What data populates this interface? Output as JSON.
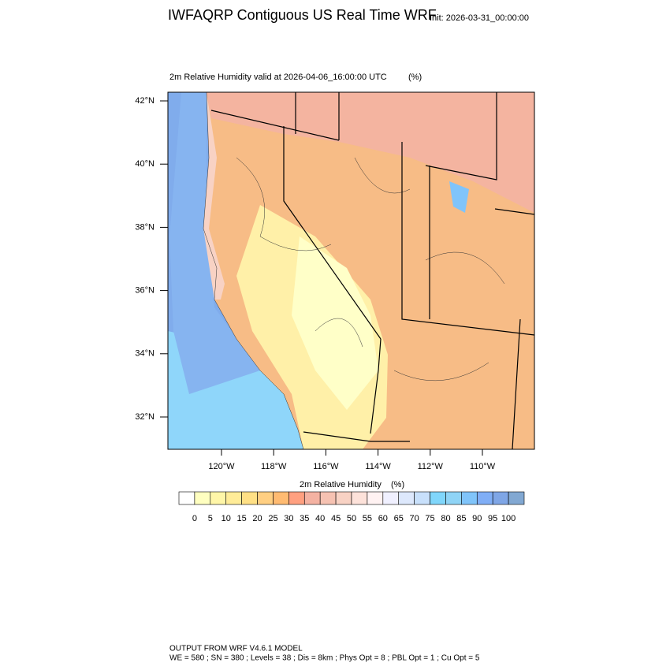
{
  "header": {
    "title": "IWFAQRP Contiguous US Real Time WRF",
    "init": "Init: 2026-03-31_00:00:00"
  },
  "map": {
    "subtitle": "2m Relative Humidity valid at 2026-04-06_16:00:00 UTC",
    "unit": "(%)",
    "lat_labels": [
      "42°N",
      "40°N",
      "38°N",
      "36°N",
      "34°N",
      "32°N"
    ],
    "lon_labels": [
      "120°W",
      "118°W",
      "116°W",
      "114°W",
      "112°W",
      "110°W"
    ]
  },
  "colorbar": {
    "title": "2m Relative Humidity",
    "unit": "(%)",
    "labels": [
      0,
      5,
      10,
      15,
      20,
      25,
      30,
      35,
      40,
      45,
      50,
      55,
      60,
      65,
      70,
      75,
      80,
      85,
      90,
      95,
      100
    ],
    "colors": [
      "#ffffff",
      "#ffffc0",
      "#fff6a8",
      "#ffec98",
      "#ffe085",
      "#ffcf82",
      "#ffbb72",
      "#ffa080",
      "#f4b2a2",
      "#f6c2b2",
      "#f8d2c4",
      "#fde2da",
      "#fff2f2",
      "#f0f0ff",
      "#dde8fc",
      "#c8e0fb",
      "#80d6fb",
      "#8fd4f6",
      "#80c4fa",
      "#80aef6",
      "#7fa6e6",
      "#82a8d2"
    ]
  },
  "footer": {
    "line1": "OUTPUT FROM WRF V4.6.1 MODEL",
    "line2": "WE = 580 ; SN = 380 ; Levels = 38 ; Dis = 8km ; Phys Opt = 8 ; PBL Opt = 1 ; Cu Opt = 5"
  }
}
